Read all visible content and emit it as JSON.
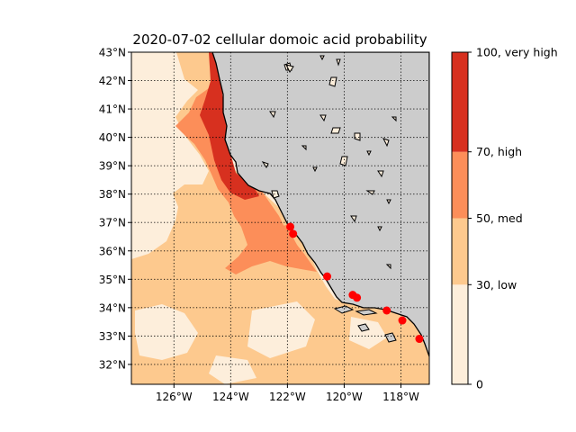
{
  "chart_data": {
    "type": "heatmap",
    "title": "2020-07-02 cellular domoic acid probability",
    "map": {
      "lon_range": [
        -127.5,
        -117.0
      ],
      "lat_range": [
        31.3,
        43.0
      ],
      "lat_ticks": [
        32,
        33,
        34,
        35,
        36,
        37,
        38,
        39,
        40,
        41,
        42,
        43
      ],
      "lat_tick_labels": [
        "32°N",
        "33°N",
        "34°N",
        "35°N",
        "36°N",
        "37°N",
        "38°N",
        "39°N",
        "40°N",
        "41°N",
        "42°N",
        "43°N"
      ],
      "lon_ticks": [
        -126,
        -124,
        -122,
        -120,
        -118
      ],
      "lon_tick_labels": [
        "126°W",
        "124°W",
        "122°W",
        "120°W",
        "118°W"
      ],
      "grid": true,
      "grid_style": "dotted"
    },
    "colorbar": {
      "levels": [
        0,
        30,
        50,
        70,
        100
      ],
      "tick_labels": [
        "0",
        "30, low",
        "50, med",
        "70, high",
        "100, very high"
      ],
      "colors": [
        "#fdeedb",
        "#fdc98e",
        "#fc8e59",
        "#d7301f"
      ]
    },
    "land_color": "#cccccc",
    "stations": [
      {
        "lon": -121.9,
        "lat": 36.85
      },
      {
        "lon": -121.8,
        "lat": 36.6
      },
      {
        "lon": -120.6,
        "lat": 35.1
      },
      {
        "lon": -119.7,
        "lat": 34.45
      },
      {
        "lon": -119.55,
        "lat": 34.35
      },
      {
        "lon": -118.5,
        "lat": 33.9
      },
      {
        "lon": -117.95,
        "lat": 33.55
      },
      {
        "lon": -117.35,
        "lat": 32.9
      }
    ],
    "station_color": "#ff0000"
  }
}
